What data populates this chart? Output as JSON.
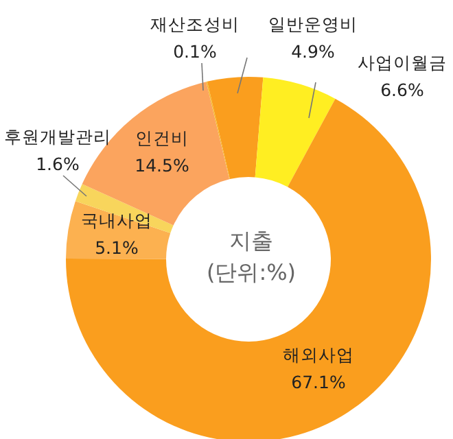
{
  "chart_data": {
    "type": "donut",
    "title": "지출",
    "subtitle": "(단위:%)",
    "categories": [
      "재산조성비",
      "일반운영비",
      "사업이월금",
      "해외사업",
      "국내사업",
      "후원개발관리",
      "인건비"
    ],
    "values": [
      0.1,
      4.9,
      6.6,
      67.1,
      5.1,
      1.6,
      14.5
    ],
    "value_labels": [
      "0.1%",
      "4.9%",
      "6.6%",
      "67.1%",
      "5.1%",
      "1.6%",
      "14.5%"
    ],
    "colors": [
      "#f5bd2c",
      "#fa9e1e",
      "#ffee22",
      "#fa9e1e",
      "#fcb150",
      "#f8d55c",
      "#fba45e"
    ]
  }
}
